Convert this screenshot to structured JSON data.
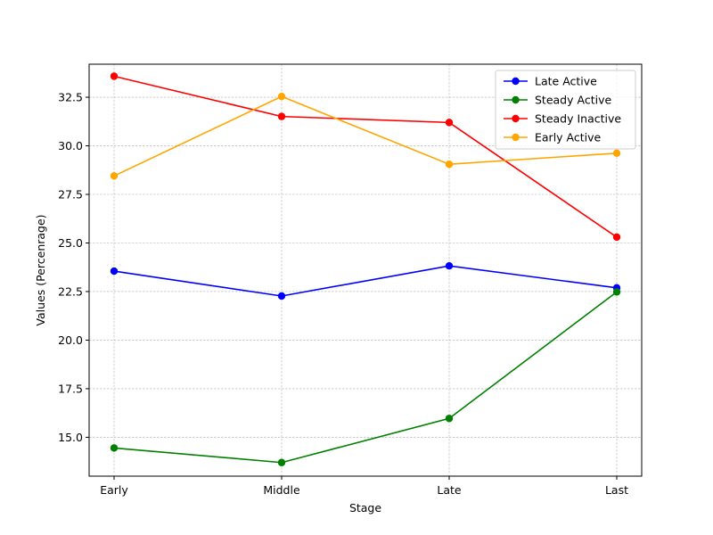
{
  "chart_data": {
    "type": "line",
    "title": "",
    "xlabel": "Stage",
    "ylabel": "Values (Percenrage)",
    "categories": [
      "Early",
      "Middle",
      "Late",
      "Last"
    ],
    "ylim": [
      13.0,
      34.2
    ],
    "yticks": [
      15.0,
      17.5,
      20.0,
      22.5,
      25.0,
      27.5,
      30.0,
      32.5
    ],
    "ytick_labels": [
      "15.0",
      "17.5",
      "20.0",
      "22.5",
      "25.0",
      "27.5",
      "30.0",
      "32.5"
    ],
    "grid": true,
    "legend_position": "top-right",
    "series": [
      {
        "name": "Late Active",
        "color": "#0000ff",
        "values": [
          23.55,
          22.27,
          23.82,
          22.69
        ]
      },
      {
        "name": "Steady Active",
        "color": "#008000",
        "values": [
          14.45,
          13.7,
          15.97,
          22.48
        ]
      },
      {
        "name": "Steady Inactive",
        "color": "#ff0000",
        "values": [
          33.58,
          31.51,
          31.2,
          25.3
        ]
      },
      {
        "name": "Early Active",
        "color": "#ffa500",
        "values": [
          28.45,
          32.54,
          29.05,
          29.62
        ]
      }
    ]
  }
}
